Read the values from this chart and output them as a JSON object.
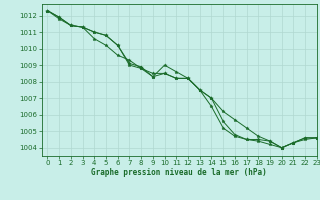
{
  "title": "Graphe pression niveau de la mer (hPa)",
  "background_color": "#c8eee8",
  "plot_bg_color": "#c8eee8",
  "line_color": "#1a6b2a",
  "grid_color": "#b0d8d0",
  "text_color": "#1a6b2a",
  "xlim": [
    -0.5,
    23
  ],
  "ylim": [
    1003.5,
    1012.7
  ],
  "yticks": [
    1004,
    1005,
    1006,
    1007,
    1008,
    1009,
    1010,
    1011,
    1012
  ],
  "xticks": [
    0,
    1,
    2,
    3,
    4,
    5,
    6,
    7,
    8,
    9,
    10,
    11,
    12,
    13,
    14,
    15,
    16,
    17,
    18,
    19,
    20,
    21,
    22,
    23
  ],
  "series": [
    [
      1012.3,
      1011.9,
      1011.4,
      1011.3,
      1011.0,
      1010.8,
      1010.2,
      1009.1,
      1008.9,
      1008.3,
      1008.5,
      1008.2,
      1008.2,
      1007.5,
      1007.0,
      1006.2,
      1005.7,
      1005.2,
      1004.7,
      1004.4,
      1004.0,
      1004.3,
      1004.6,
      1004.6
    ],
    [
      1012.3,
      1011.9,
      1011.4,
      1011.3,
      1011.0,
      1010.8,
      1010.2,
      1009.0,
      1008.8,
      1008.3,
      1009.0,
      1008.6,
      1008.2,
      1007.5,
      1006.5,
      1005.2,
      1004.7,
      1004.5,
      1004.5,
      1004.4,
      1004.0,
      1004.3,
      1004.6,
      1004.6
    ],
    [
      1012.3,
      1011.8,
      1011.4,
      1011.3,
      1010.6,
      1010.2,
      1009.6,
      1009.3,
      1008.8,
      1008.5,
      1008.5,
      1008.2,
      1008.2,
      1007.5,
      1007.0,
      1005.6,
      1004.8,
      1004.5,
      1004.4,
      1004.2,
      1004.0,
      1004.3,
      1004.5,
      1004.6
    ]
  ],
  "tick_fontsize": 5,
  "label_fontsize": 5.5
}
